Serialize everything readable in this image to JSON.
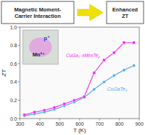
{
  "chart_data": {
    "type": "line",
    "xlabel": "T (K)",
    "ylabel": "ZT",
    "annotations": [
      "Magnetic Moment-\nCarrier Interaction",
      "Enhanced\nZT",
      "p⁺",
      "Mn²⁺"
    ],
    "x": [
      323,
      373,
      423,
      473,
      523,
      573,
      623,
      673,
      723,
      773,
      823,
      873
    ],
    "series": [
      {
        "name": "CuGaTe₂",
        "color": "#55aaee",
        "marker": "circle",
        "values": [
          0.03,
          0.05,
          0.07,
          0.1,
          0.14,
          0.18,
          0.23,
          0.32,
          0.4,
          0.47,
          0.53,
          0.58
        ]
      },
      {
        "name": "CuGa₁₋xMnxTe₂",
        "color": "#ee30ee",
        "marker": "square",
        "values": [
          0.04,
          0.07,
          0.09,
          0.12,
          0.16,
          0.2,
          0.24,
          0.5,
          0.64,
          0.72,
          0.83,
          0.83
        ]
      }
    ],
    "xlim": [
      300,
      900
    ],
    "ylim": [
      0,
      1.0
    ],
    "xticks": [
      300,
      400,
      500,
      600,
      700,
      800,
      900
    ],
    "yticks": [
      {
        "value": 0,
        "label": "0.0"
      },
      0.2,
      0.4,
      0.6,
      0.8,
      {
        "value": 1,
        "label": "1.0"
      }
    ],
    "grid": false
  }
}
